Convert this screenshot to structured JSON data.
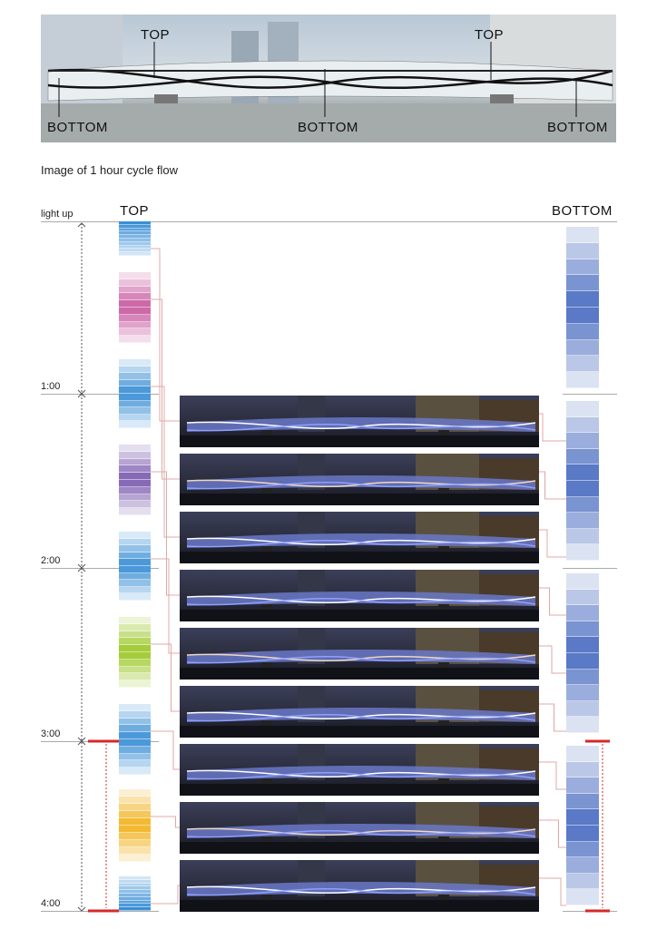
{
  "hero": {
    "top_labels": [
      "TOP",
      "TOP"
    ],
    "bottom_labels": [
      "BOTTOM",
      "BOTTOM",
      "BOTTOM"
    ]
  },
  "caption": "Image of 1 hour cycle flow",
  "timeline": {
    "column_top": "TOP",
    "column_bottom": "BOTTOM",
    "marks": [
      "light up",
      "1:00",
      "2:00",
      "3:00",
      "4:00"
    ]
  },
  "top_color_groups": [
    {
      "color": "blue",
      "hex": "#3a8fd6"
    },
    {
      "color": "pink",
      "hex": "#c85aa0"
    },
    {
      "color": "blue",
      "hex": "#3a8fd6"
    },
    {
      "color": "purple",
      "hex": "#7b5bb0"
    },
    {
      "color": "blue",
      "hex": "#3a8fd6"
    },
    {
      "color": "green",
      "hex": "#9cc828"
    },
    {
      "color": "blue",
      "hex": "#3a8fd6"
    },
    {
      "color": "yellow",
      "hex": "#f2b21e"
    },
    {
      "color": "blue",
      "hex": "#3a8fd6"
    }
  ],
  "bottom_color": "#4a6cc0",
  "accent_red": "#d42a2a",
  "photo_count": 9
}
